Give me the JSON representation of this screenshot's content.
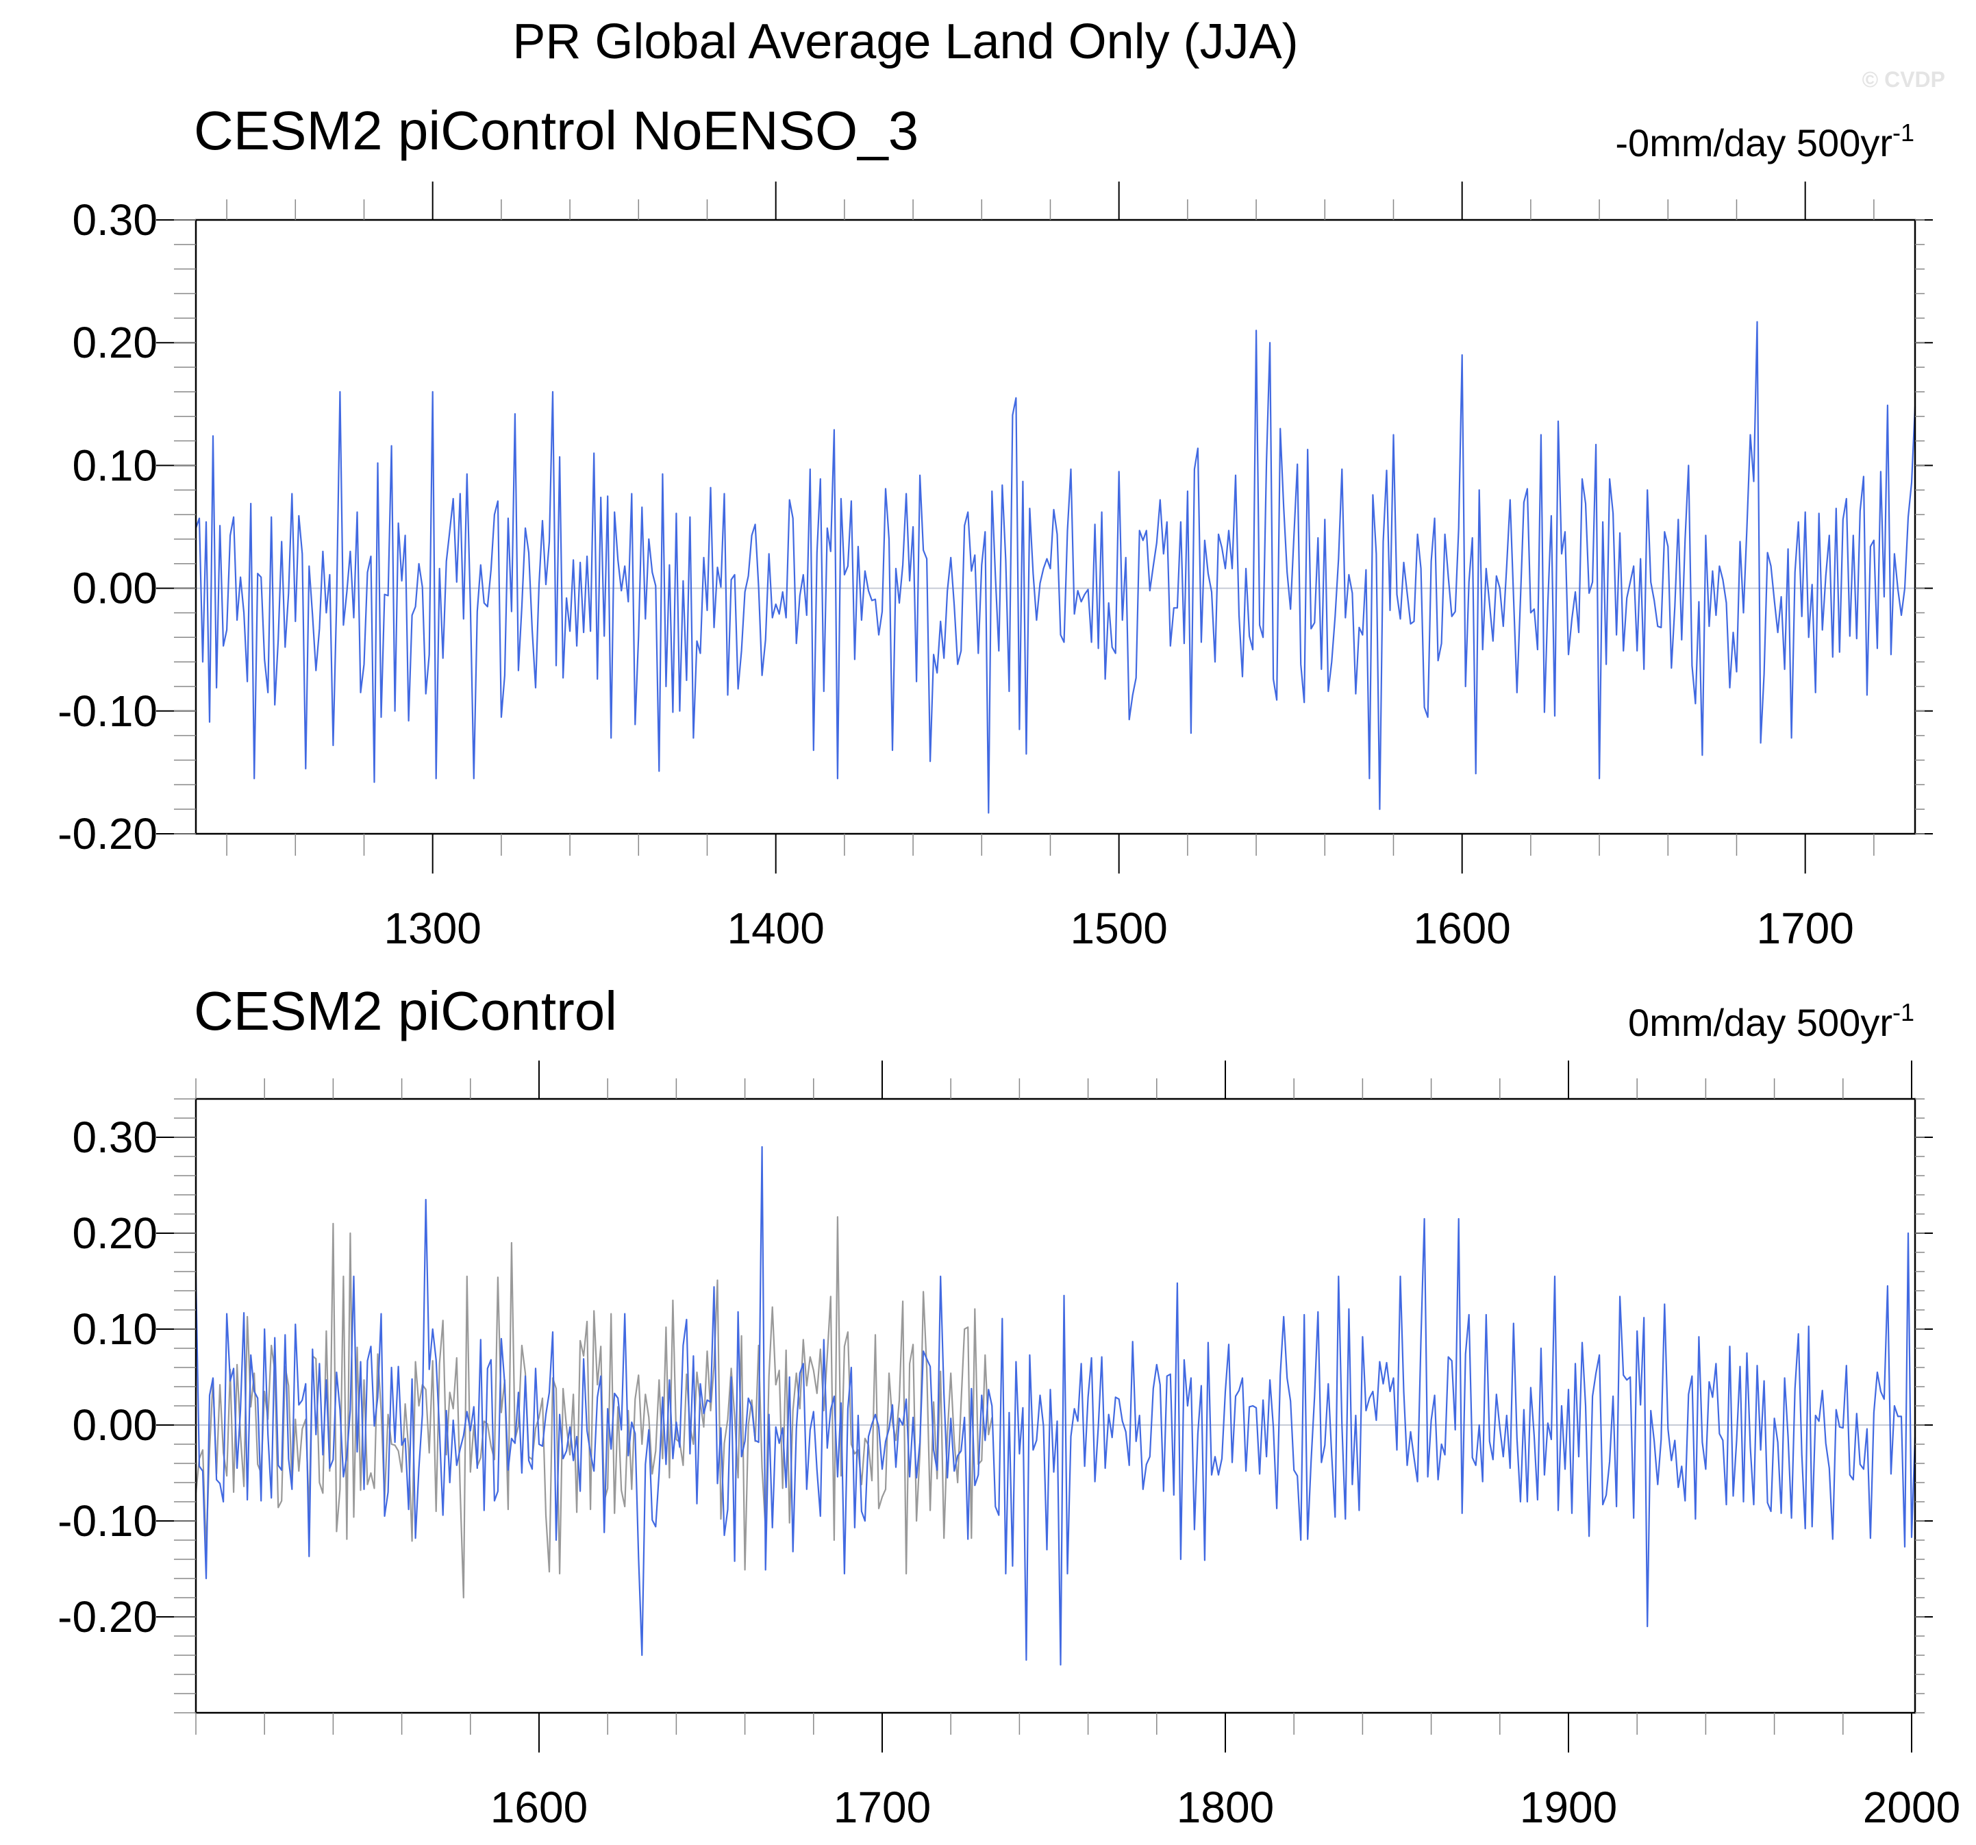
{
  "figure": {
    "title": "PR Global Average Land Only (JJA)",
    "watermark": "© CVDP"
  },
  "colors": {
    "series": "#4169e1",
    "overlay": "#999999",
    "zero_line": "#c6cbd6",
    "axis": "#000000"
  },
  "chart_data": [
    {
      "type": "line",
      "title": "CESM2 piControl NoENSO_3",
      "trend_label": {
        "value": "-0mm/day 500yr",
        "exponent": "-1"
      },
      "xlim": [
        1231,
        1732
      ],
      "ylim": [
        -0.2,
        0.3
      ],
      "xticks": [
        1300,
        1400,
        1500,
        1600,
        1700
      ],
      "xtick_labels": [
        "1300",
        "1400",
        "1500",
        "1600",
        "1700"
      ],
      "xminor_step": 20,
      "yticks": [
        0.3,
        0.2,
        0.1,
        0.0,
        -0.1,
        -0.2
      ],
      "ytick_labels": [
        "0.30",
        "0.20",
        "0.10",
        "0.00",
        "-0.10",
        "-0.20"
      ],
      "yminor_step": 0.02,
      "zero_line": true,
      "series": [
        {
          "color": "#4169e1",
          "x_start": 1231,
          "seed": 3,
          "peaks": [
            [
              1273,
              0.16
            ],
            [
              1283,
              -0.158
            ],
            [
              1300,
              0.16
            ],
            [
              1335,
              0.16
            ],
            [
              1462,
              -0.183
            ],
            [
              1470,
              0.155
            ],
            [
              1540,
              0.21
            ],
            [
              1544,
              0.2
            ],
            [
              1576,
              -0.18
            ],
            [
              1600,
              0.19
            ],
            [
              1686,
              0.217
            ]
          ]
        }
      ]
    },
    {
      "type": "line",
      "title": "CESM2 piControl",
      "trend_label": {
        "value": "0mm/day 500yr",
        "exponent": "-1"
      },
      "xlim": [
        1500,
        2001
      ],
      "ylim": [
        -0.3,
        0.34
      ],
      "xticks": [
        1600,
        1700,
        1800,
        1900,
        2000
      ],
      "xtick_labels": [
        "1600",
        "1700",
        "1800",
        "1900",
        "2000"
      ],
      "xminor_step": 20,
      "yticks": [
        0.3,
        0.2,
        0.1,
        0.0,
        -0.1,
        -0.2
      ],
      "ytick_labels": [
        "0.30",
        "0.20",
        "0.10",
        "0.00",
        "-0.10",
        "-0.20"
      ],
      "yminor_step": 0.02,
      "zero_line": true,
      "series": [
        {
          "color": "#999999",
          "x_start": 1500,
          "x_end": 1732,
          "seed": 11,
          "peaks": [
            [
              1540,
              0.21
            ],
            [
              1545,
              0.2
            ],
            [
              1592,
              0.19
            ],
            [
              1687,
              0.217
            ],
            [
              1578,
              -0.18
            ]
          ]
        },
        {
          "color": "#4169e1",
          "x_start": 1500,
          "seed": 7,
          "peaks": [
            [
              1665,
              0.29
            ],
            [
              1567,
              0.235
            ],
            [
              1630,
              -0.24
            ],
            [
              1742,
              -0.245
            ],
            [
              1752,
              -0.25
            ],
            [
              1858,
              0.215
            ],
            [
              1868,
              0.215
            ],
            [
              1923,
              -0.21
            ],
            [
              1999,
              0.2
            ],
            [
              1503,
              -0.16
            ]
          ]
        }
      ]
    }
  ]
}
